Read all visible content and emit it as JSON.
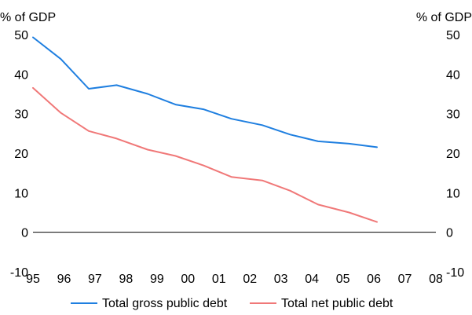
{
  "chart_data": {
    "type": "line",
    "title": "",
    "left_unit": "% of GDP",
    "right_unit": "% of GDP",
    "x": [
      "95",
      "96",
      "97",
      "98",
      "99",
      "00",
      "01",
      "02",
      "03",
      "04",
      "05",
      "06",
      "07",
      "08"
    ],
    "ylim": [
      -10,
      50
    ],
    "yticks": [
      -10,
      0,
      10,
      20,
      30,
      40,
      50
    ],
    "ytick_labels": [
      "-10",
      "0",
      "10",
      "20",
      "30",
      "40",
      "50"
    ],
    "grid": false,
    "legend_position": "bottom",
    "series": [
      {
        "name": "Total gross public debt",
        "color": "#1f7fe0",
        "points": [
          {
            "x": 95.0,
            "y": 49.3
          },
          {
            "x": 95.9,
            "y": 43.8
          },
          {
            "x": 96.8,
            "y": 36.3
          },
          {
            "x": 97.7,
            "y": 37.2
          },
          {
            "x": 98.7,
            "y": 35.0
          },
          {
            "x": 99.6,
            "y": 32.3
          },
          {
            "x": 100.5,
            "y": 31.1
          },
          {
            "x": 101.4,
            "y": 28.7
          },
          {
            "x": 102.4,
            "y": 27.1
          },
          {
            "x": 103.3,
            "y": 24.7
          },
          {
            "x": 104.2,
            "y": 23.0
          },
          {
            "x": 105.2,
            "y": 22.4
          },
          {
            "x": 106.1,
            "y": 21.5
          }
        ]
      },
      {
        "name": "Total net public debt",
        "color": "#f07878",
        "points": [
          {
            "x": 95.0,
            "y": 36.5
          },
          {
            "x": 95.9,
            "y": 30.2
          },
          {
            "x": 96.8,
            "y": 25.6
          },
          {
            "x": 97.7,
            "y": 23.7
          },
          {
            "x": 98.7,
            "y": 20.9
          },
          {
            "x": 99.6,
            "y": 19.3
          },
          {
            "x": 100.5,
            "y": 16.9
          },
          {
            "x": 101.4,
            "y": 14.0
          },
          {
            "x": 102.4,
            "y": 13.1
          },
          {
            "x": 103.3,
            "y": 10.5
          },
          {
            "x": 104.2,
            "y": 7.0
          },
          {
            "x": 105.2,
            "y": 5.0
          },
          {
            "x": 106.1,
            "y": 2.6
          }
        ]
      }
    ]
  }
}
